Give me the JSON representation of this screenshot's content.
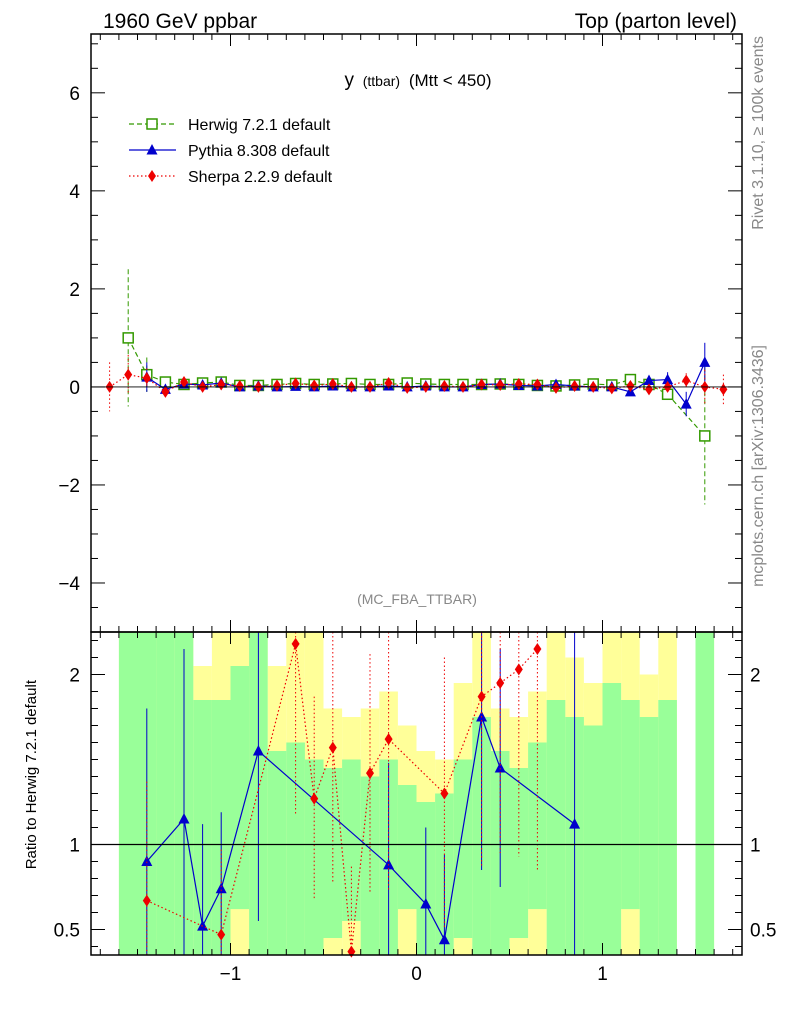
{
  "header": {
    "left": "1960 GeV ppbar",
    "right": "Top (parton level)"
  },
  "side_labels": {
    "rivet": "Rivet 3.1.10, ≥ 100k events",
    "mcplots": "mcplots.cern.ch [arXiv:1306.3436]"
  },
  "plot_title": {
    "main": "y",
    "sub": "(ttbar)",
    "cut": "(Mtt < 450)"
  },
  "analysis_tag": "(MC_FBA_TTBAR)",
  "ratio_ylabel": "Ratio to Herwig 7.2.1 default",
  "chart_data": [
    {
      "type": "line",
      "panel": "main",
      "xlim": [
        -1.75,
        1.75
      ],
      "ylim": [
        -5,
        7.2
      ],
      "yticks": [
        -4,
        -2,
        0,
        2,
        4,
        6
      ],
      "ytick_labels": [
        "−4",
        "−2",
        "0",
        "2",
        "4",
        "6"
      ],
      "x": [
        -1.65,
        -1.55,
        -1.45,
        -1.35,
        -1.25,
        -1.15,
        -1.05,
        -0.95,
        -0.85,
        -0.75,
        -0.65,
        -0.55,
        -0.45,
        -0.35,
        -0.25,
        -0.15,
        -0.05,
        0.05,
        0.15,
        0.25,
        0.35,
        0.45,
        0.55,
        0.65,
        0.75,
        0.85,
        0.95,
        1.05,
        1.15,
        1.25,
        1.35,
        1.45,
        1.55,
        1.65
      ],
      "legend": [
        {
          "label": "Herwig 7.2.1 default",
          "color": "#339900",
          "marker": "open-square",
          "dash": "dashed"
        },
        {
          "label": "Pythia 8.308 default",
          "color": "#0000cc",
          "marker": "triangle",
          "dash": "solid"
        },
        {
          "label": "Sherpa 2.2.9 default",
          "color": "#ee0000",
          "marker": "diamond",
          "dash": "dotted"
        }
      ],
      "series": [
        {
          "name": "Herwig 7.2.1 default",
          "color": "#339900",
          "y": [
            null,
            1.0,
            0.25,
            0.1,
            0.05,
            0.08,
            0.1,
            0.03,
            0.03,
            0.05,
            0.07,
            0.05,
            0.06,
            0.07,
            0.05,
            0.05,
            0.08,
            0.06,
            0.05,
            0.05,
            0.05,
            0.06,
            0.05,
            0.03,
            0.02,
            0.04,
            0.06,
            0.04,
            0.15,
            0.05,
            -0.15,
            null,
            -1.0,
            null
          ],
          "err": [
            null,
            1.4,
            0.35,
            0.1,
            0.05,
            0.05,
            0.05,
            0.03,
            0.03,
            0.03,
            0.03,
            0.03,
            0.03,
            0.03,
            0.03,
            0.03,
            0.03,
            0.03,
            0.03,
            0.03,
            0.03,
            0.03,
            0.03,
            0.03,
            0.03,
            0.03,
            0.03,
            0.05,
            0.05,
            0.1,
            0.15,
            null,
            1.4,
            null
          ]
        },
        {
          "name": "Pythia 8.308 default",
          "color": "#0000cc",
          "y": [
            null,
            null,
            0.2,
            -0.05,
            0.06,
            0.04,
            0.08,
            0.0,
            0.02,
            0.0,
            0.01,
            0.0,
            0.02,
            0.0,
            0.0,
            0.02,
            0.0,
            0.02,
            0.0,
            0.0,
            0.05,
            0.06,
            0.03,
            0.02,
            0.05,
            0.02,
            0.0,
            0.0,
            -0.1,
            0.13,
            0.15,
            -0.35,
            0.5,
            null
          ],
          "err": [
            null,
            null,
            0.3,
            0.08,
            0.05,
            0.03,
            0.03,
            0.03,
            0.03,
            0.03,
            0.03,
            0.03,
            0.03,
            0.03,
            0.03,
            0.03,
            0.03,
            0.03,
            0.03,
            0.03,
            0.03,
            0.03,
            0.03,
            0.03,
            0.03,
            0.03,
            0.03,
            0.05,
            0.08,
            0.1,
            0.15,
            0.25,
            0.4,
            null
          ]
        },
        {
          "name": "Sherpa 2.2.9 default",
          "color": "#ee0000",
          "y": [
            0.0,
            0.25,
            0.18,
            -0.1,
            0.1,
            0.0,
            0.05,
            0.02,
            0.0,
            0.03,
            0.07,
            0.03,
            0.06,
            0.0,
            0.0,
            0.08,
            -0.02,
            0.0,
            0.02,
            0.0,
            0.05,
            0.04,
            0.06,
            0.05,
            -0.02,
            0.02,
            0.0,
            -0.03,
            0.02,
            -0.05,
            0.0,
            0.13,
            0.0,
            -0.05
          ],
          "err": [
            0.5,
            0.4,
            0.2,
            0.1,
            0.05,
            0.04,
            0.04,
            0.03,
            0.03,
            0.03,
            0.03,
            0.03,
            0.03,
            0.03,
            0.03,
            0.03,
            0.03,
            0.03,
            0.03,
            0.03,
            0.03,
            0.03,
            0.03,
            0.03,
            0.03,
            0.03,
            0.03,
            0.04,
            0.05,
            0.08,
            0.1,
            0.15,
            0.35,
            0.3
          ]
        }
      ]
    },
    {
      "type": "line",
      "panel": "ratio",
      "ylabel": "Ratio to Herwig 7.2.1 default",
      "xlim": [
        -1.75,
        1.75
      ],
      "ylim": [
        0.35,
        2.25
      ],
      "xticks": [
        -1,
        0,
        1
      ],
      "xtick_labels": [
        "−1",
        "0",
        "1"
      ],
      "yticks": [
        0.5,
        1,
        2
      ],
      "ytick_labels": [
        "0.5",
        "1",
        "2"
      ],
      "x": [
        -1.65,
        -1.55,
        -1.45,
        -1.35,
        -1.25,
        -1.15,
        -1.05,
        -0.95,
        -0.85,
        -0.75,
        -0.65,
        -0.55,
        -0.45,
        -0.35,
        -0.25,
        -0.15,
        -0.05,
        0.05,
        0.15,
        0.25,
        0.35,
        0.45,
        0.55,
        0.65,
        0.75,
        0.85,
        0.95,
        1.05,
        1.15,
        1.25,
        1.35,
        1.45,
        1.55,
        1.65
      ],
      "bands": {
        "yellow_lo": [
          null,
          0.35,
          0.35,
          0.35,
          0.35,
          0.35,
          0.35,
          0.35,
          0.35,
          0.35,
          0.35,
          0.35,
          0.35,
          0.35,
          0.35,
          0.35,
          0.35,
          0.35,
          0.35,
          0.35,
          0.35,
          0.35,
          0.35,
          0.35,
          0.35,
          0.35,
          0.35,
          0.35,
          0.35,
          0.35,
          0.35,
          null,
          0.35,
          null
        ],
        "yellow_hi": [
          null,
          2.25,
          2.25,
          2.25,
          2.25,
          2.05,
          2.25,
          2.25,
          2.25,
          2.05,
          2.25,
          2.25,
          1.8,
          1.75,
          1.8,
          1.9,
          1.7,
          1.55,
          1.5,
          1.95,
          2.25,
          1.8,
          1.75,
          1.9,
          2.25,
          2.1,
          1.95,
          2.25,
          2.25,
          2.0,
          2.25,
          null,
          2.25,
          null
        ],
        "green_lo": [
          null,
          0.35,
          0.35,
          0.35,
          0.35,
          0.35,
          0.35,
          0.62,
          0.35,
          0.35,
          0.35,
          0.35,
          0.45,
          0.55,
          0.35,
          0.35,
          0.62,
          0.35,
          0.35,
          0.45,
          0.35,
          0.35,
          0.45,
          0.62,
          0.35,
          0.35,
          0.35,
          0.35,
          0.62,
          0.35,
          0.35,
          null,
          0.35,
          null
        ],
        "green_hi": [
          null,
          2.25,
          2.25,
          2.25,
          2.25,
          1.85,
          1.85,
          2.05,
          2.25,
          1.55,
          1.6,
          1.5,
          1.45,
          1.5,
          1.4,
          1.5,
          1.35,
          1.25,
          1.3,
          1.5,
          1.75,
          1.55,
          1.45,
          1.6,
          1.85,
          1.75,
          1.7,
          1.95,
          1.85,
          1.75,
          1.85,
          null,
          2.25,
          null
        ]
      },
      "series": [
        {
          "name": "Pythia 8.308 default",
          "color": "#0000cc",
          "y": [
            null,
            null,
            0.9,
            null,
            1.15,
            0.52,
            0.74,
            null,
            1.55,
            null,
            null,
            null,
            null,
            null,
            null,
            0.88,
            null,
            0.65,
            0.44,
            null,
            1.75,
            1.45,
            null,
            null,
            null,
            1.12,
            null,
            null,
            null,
            null,
            null,
            null,
            null,
            null
          ],
          "err": [
            null,
            null,
            0.9,
            null,
            1.0,
            0.6,
            0.45,
            null,
            1.0,
            null,
            null,
            null,
            null,
            null,
            null,
            0.6,
            null,
            0.45,
            0.5,
            null,
            0.9,
            0.7,
            null,
            null,
            null,
            1.3,
            null,
            null,
            null,
            null,
            null,
            null,
            null,
            null
          ]
        },
        {
          "name": "Sherpa 2.2.9 default",
          "color": "#ee0000",
          "y": [
            null,
            null,
            0.67,
            null,
            null,
            null,
            0.47,
            null,
            null,
            null,
            2.18,
            1.27,
            1.57,
            0.37,
            1.42,
            1.62,
            null,
            null,
            1.3,
            null,
            1.87,
            1.95,
            2.03,
            2.15,
            null,
            null,
            null,
            null,
            null,
            null,
            null,
            null,
            null,
            null
          ],
          "err": [
            null,
            null,
            0.7,
            null,
            null,
            null,
            0.5,
            null,
            null,
            null,
            1.0,
            0.6,
            0.8,
            0.5,
            0.7,
            0.9,
            null,
            null,
            0.8,
            null,
            1.0,
            1.0,
            1.1,
            1.3,
            null,
            null,
            null,
            null,
            null,
            null,
            null,
            null,
            null,
            null
          ]
        }
      ]
    }
  ]
}
